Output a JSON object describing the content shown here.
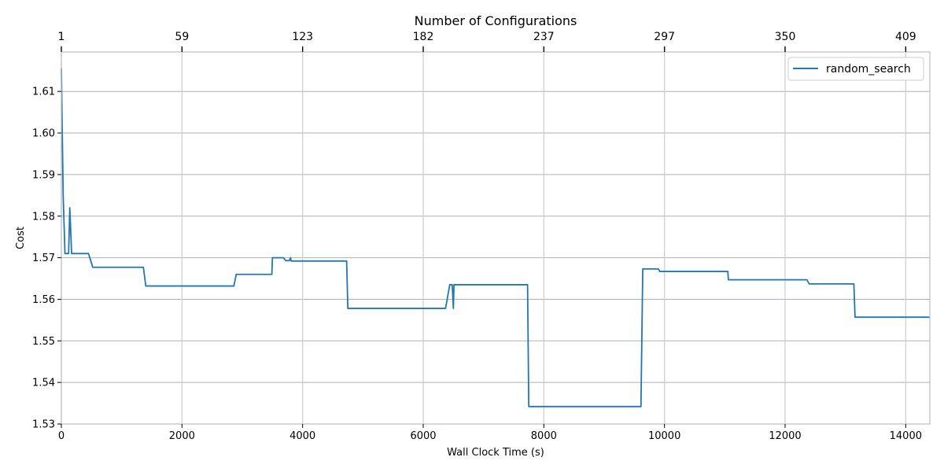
{
  "chart_data": {
    "type": "line",
    "xlabel": "Wall Clock Time (s)",
    "ylabel": "Cost",
    "top_xlabel": "Number of Configurations",
    "xlim": [
      0,
      14400
    ],
    "ylim": [
      1.53,
      1.6195
    ],
    "x_ticks": [
      0,
      2000,
      4000,
      6000,
      8000,
      10000,
      12000,
      14000
    ],
    "x_tick_labels": [
      "0",
      "2000",
      "4000",
      "6000",
      "8000",
      "10000",
      "12000",
      "14000"
    ],
    "y_ticks": [
      1.53,
      1.54,
      1.55,
      1.56,
      1.57,
      1.58,
      1.59,
      1.6,
      1.61
    ],
    "y_tick_labels": [
      "1.53",
      "1.54",
      "1.55",
      "1.56",
      "1.57",
      "1.58",
      "1.59",
      "1.60",
      "1.61"
    ],
    "top_ticks": [
      0,
      2000,
      4000,
      6000,
      8000,
      10000,
      12000,
      14000
    ],
    "top_tick_labels": [
      "1",
      "59",
      "123",
      "182",
      "237",
      "297",
      "350",
      "409"
    ],
    "grid": true,
    "legend_position": "top-right",
    "series": [
      {
        "name": "random_search",
        "color": "#1f77b4",
        "points": [
          [
            0,
            1.6155
          ],
          [
            30,
            1.585
          ],
          [
            60,
            1.571
          ],
          [
            120,
            1.571
          ],
          [
            140,
            1.582
          ],
          [
            170,
            1.571
          ],
          [
            450,
            1.571
          ],
          [
            520,
            1.5677
          ],
          [
            1360,
            1.5677
          ],
          [
            1400,
            1.5632
          ],
          [
            2860,
            1.5632
          ],
          [
            2900,
            1.566
          ],
          [
            3490,
            1.566
          ],
          [
            3500,
            1.57
          ],
          [
            3680,
            1.57
          ],
          [
            3720,
            1.5693
          ],
          [
            3780,
            1.5693
          ],
          [
            3800,
            1.57
          ],
          [
            3810,
            1.5692
          ],
          [
            4730,
            1.5692
          ],
          [
            4750,
            1.5578
          ],
          [
            6370,
            1.5578
          ],
          [
            6440,
            1.5635
          ],
          [
            6480,
            1.5635
          ],
          [
            6500,
            1.5578
          ],
          [
            6510,
            1.5635
          ],
          [
            7730,
            1.5635
          ],
          [
            7750,
            1.5342
          ],
          [
            9610,
            1.5342
          ],
          [
            9640,
            1.5673
          ],
          [
            9900,
            1.5673
          ],
          [
            9920,
            1.5667
          ],
          [
            11050,
            1.5667
          ],
          [
            11060,
            1.5647
          ],
          [
            12360,
            1.5647
          ],
          [
            12400,
            1.5637
          ],
          [
            13140,
            1.5637
          ],
          [
            13160,
            1.5557
          ],
          [
            14400,
            1.5557
          ]
        ]
      }
    ]
  }
}
